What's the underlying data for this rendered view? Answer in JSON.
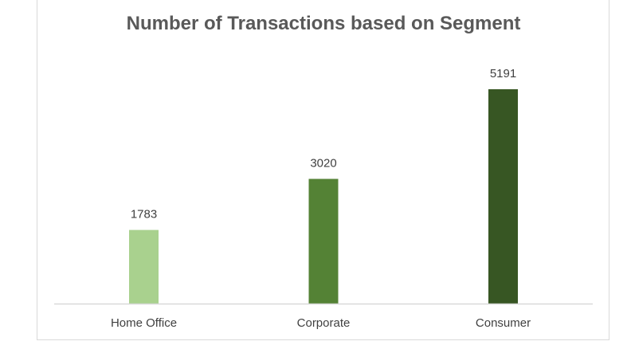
{
  "chart_data": {
    "type": "bar",
    "title": "Number of Transactions based on Segment",
    "xlabel": "",
    "ylabel": "",
    "categories": [
      "Home Office",
      "Corporate",
      "Consumer"
    ],
    "values": [
      1783,
      3020,
      5191
    ],
    "colors": [
      "#a9d18e",
      "#548235",
      "#375623"
    ],
    "ylim": [
      0,
      5191
    ],
    "grid": false,
    "legend": "none",
    "data_labels": true
  }
}
